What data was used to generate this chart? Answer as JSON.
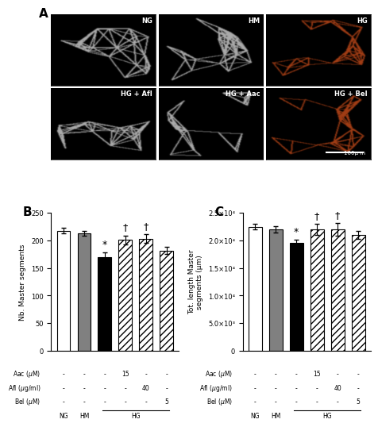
{
  "panel_A_label": "A",
  "panel_B_label": "B",
  "panel_C_label": "C",
  "microscopy_labels": [
    "NG",
    "HM",
    "HG",
    "HG + Afl",
    "HG + Aac",
    "HG + Bel"
  ],
  "microscopy_colors": [
    "gray",
    "gray",
    "brown",
    "gray",
    "gray",
    "brown"
  ],
  "scale_bar_text": "100μ m",
  "bar_B_values": [
    218,
    213,
    170,
    201,
    203,
    182
  ],
  "bar_B_errors": [
    5,
    5,
    8,
    8,
    8,
    7
  ],
  "bar_C_values": [
    22500,
    22000,
    19500,
    22000,
    22000,
    21000
  ],
  "bar_C_errors": [
    500,
    600,
    700,
    1000,
    1200,
    700
  ],
  "bar_face_colors": [
    "white",
    "#808080",
    "black",
    "white",
    "white",
    "white"
  ],
  "bar_hatches": [
    "",
    "",
    "",
    "////",
    "////",
    "////"
  ],
  "xlabel_rows": [
    [
      "Aac (μM)",
      "-",
      "-",
      "-",
      "15",
      "-",
      "-"
    ],
    [
      "Afl (μg/ml)",
      "-",
      "-",
      "-",
      "-",
      "40",
      "-"
    ],
    [
      "Bel (μM)",
      "-",
      "-",
      "-",
      "-",
      "-",
      "5"
    ]
  ],
  "ylabel_B": "Nb. Master segments",
  "ylabel_C": "Tot. length Master\nsegments (μm)",
  "ylim_B": [
    0,
    250
  ],
  "yticks_B": [
    0,
    50,
    100,
    150,
    200,
    250
  ],
  "ylim_C": [
    0,
    25000
  ],
  "yticks_C": [
    0,
    5000,
    10000,
    15000,
    20000,
    25000
  ],
  "ytick_labels_C": [
    "0",
    "5.0×10³",
    "1.0×10⁴",
    "1.5×10⁴",
    "2.0×10⁴",
    "2.5×10⁴"
  ],
  "sig_B_star": [
    2
  ],
  "sig_B_dagger": [
    3,
    4
  ],
  "sig_C_star": [
    2
  ],
  "sig_C_dagger": [
    3,
    4
  ],
  "background_color": "white"
}
